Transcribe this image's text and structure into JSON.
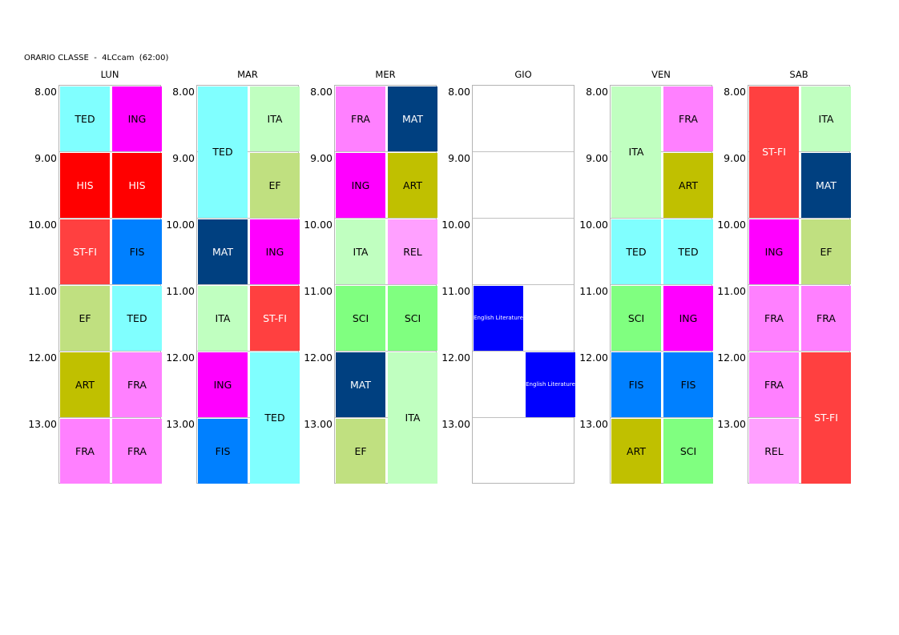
{
  "title": "ORARIO CLASSE  -  4LCcam  (62:00)",
  "times": [
    "8.00",
    "9.00",
    "10.00",
    "11.00",
    "12.00",
    "13.00"
  ],
  "colors": {
    "TED": "#80ffff",
    "ING": "#ff00ff",
    "HIS": "#ff0000",
    "ST-FI": "#ff4040",
    "FIS": "#0080ff",
    "EF": "#c0e080",
    "ART": "#c0c000",
    "FRA": "#ff80ff",
    "ITA": "#c0ffc0",
    "MAT": "#004080",
    "REL": "#ffa0ff",
    "SCI": "#80ff80",
    "English Literature": "#0000ff"
  },
  "text_colors": {
    "HIS": "#ffffff",
    "ST-FI": "#ffffff",
    "MAT": "#ffffff",
    "English Literature": "#ffffff"
  },
  "days": [
    {
      "name": "LUN",
      "lessons": [
        {
          "subject": "TED",
          "col": 0,
          "start": 0,
          "span": 1
        },
        {
          "subject": "ING",
          "col": 1,
          "start": 0,
          "span": 1
        },
        {
          "subject": "HIS",
          "col": 0,
          "start": 1,
          "span": 1
        },
        {
          "subject": "HIS",
          "col": 1,
          "start": 1,
          "span": 1
        },
        {
          "subject": "ST-FI",
          "col": 0,
          "start": 2,
          "span": 1
        },
        {
          "subject": "FIS",
          "col": 1,
          "start": 2,
          "span": 1
        },
        {
          "subject": "EF",
          "col": 0,
          "start": 3,
          "span": 1
        },
        {
          "subject": "TED",
          "col": 1,
          "start": 3,
          "span": 1
        },
        {
          "subject": "ART",
          "col": 0,
          "start": 4,
          "span": 1
        },
        {
          "subject": "FRA",
          "col": 1,
          "start": 4,
          "span": 1
        },
        {
          "subject": "FRA",
          "col": 0,
          "start": 5,
          "span": 1
        },
        {
          "subject": "FRA",
          "col": 1,
          "start": 5,
          "span": 1
        }
      ]
    },
    {
      "name": "MAR",
      "lessons": [
        {
          "subject": "TED",
          "col": 0,
          "start": 0,
          "span": 2
        },
        {
          "subject": "ITA",
          "col": 1,
          "start": 0,
          "span": 1
        },
        {
          "subject": "EF",
          "col": 1,
          "start": 1,
          "span": 1
        },
        {
          "subject": "MAT",
          "col": 0,
          "start": 2,
          "span": 1
        },
        {
          "subject": "ING",
          "col": 1,
          "start": 2,
          "span": 1
        },
        {
          "subject": "ITA",
          "col": 0,
          "start": 3,
          "span": 1
        },
        {
          "subject": "ST-FI",
          "col": 1,
          "start": 3,
          "span": 1
        },
        {
          "subject": "ING",
          "col": 0,
          "start": 4,
          "span": 1
        },
        {
          "subject": "TED",
          "col": 1,
          "start": 4,
          "span": 2
        },
        {
          "subject": "FIS",
          "col": 0,
          "start": 5,
          "span": 1
        }
      ]
    },
    {
      "name": "MER",
      "lessons": [
        {
          "subject": "FRA",
          "col": 0,
          "start": 0,
          "span": 1
        },
        {
          "subject": "MAT",
          "col": 1,
          "start": 0,
          "span": 1
        },
        {
          "subject": "ING",
          "col": 0,
          "start": 1,
          "span": 1
        },
        {
          "subject": "ART",
          "col": 1,
          "start": 1,
          "span": 1
        },
        {
          "subject": "ITA",
          "col": 0,
          "start": 2,
          "span": 1
        },
        {
          "subject": "REL",
          "col": 1,
          "start": 2,
          "span": 1
        },
        {
          "subject": "SCI",
          "col": 0,
          "start": 3,
          "span": 1
        },
        {
          "subject": "SCI",
          "col": 1,
          "start": 3,
          "span": 1
        },
        {
          "subject": "MAT",
          "col": 0,
          "start": 4,
          "span": 1
        },
        {
          "subject": "ITA",
          "col": 1,
          "start": 4,
          "span": 2
        },
        {
          "subject": "EF",
          "col": 0,
          "start": 5,
          "span": 1
        }
      ]
    },
    {
      "name": "GIO",
      "lessons": [
        {
          "subject": "English Literature",
          "col": 0,
          "start": 3,
          "span": 1,
          "small": true
        },
        {
          "subject": "English Literature",
          "col": 1,
          "start": 4,
          "span": 1,
          "small": true
        }
      ]
    },
    {
      "name": "VEN",
      "lessons": [
        {
          "subject": "ITA",
          "col": 0,
          "start": 0,
          "span": 2
        },
        {
          "subject": "FRA",
          "col": 1,
          "start": 0,
          "span": 1
        },
        {
          "subject": "ART",
          "col": 1,
          "start": 1,
          "span": 1
        },
        {
          "subject": "TED",
          "col": 0,
          "start": 2,
          "span": 1
        },
        {
          "subject": "TED",
          "col": 1,
          "start": 2,
          "span": 1
        },
        {
          "subject": "SCI",
          "col": 0,
          "start": 3,
          "span": 1
        },
        {
          "subject": "ING",
          "col": 1,
          "start": 3,
          "span": 1
        },
        {
          "subject": "FIS",
          "col": 0,
          "start": 4,
          "span": 1
        },
        {
          "subject": "FIS",
          "col": 1,
          "start": 4,
          "span": 1
        },
        {
          "subject": "ART",
          "col": 0,
          "start": 5,
          "span": 1
        },
        {
          "subject": "SCI",
          "col": 1,
          "start": 5,
          "span": 1
        }
      ]
    },
    {
      "name": "SAB",
      "lessons": [
        {
          "subject": "ST-FI",
          "col": 0,
          "start": 0,
          "span": 2
        },
        {
          "subject": "ITA",
          "col": 1,
          "start": 0,
          "span": 1
        },
        {
          "subject": "MAT",
          "col": 1,
          "start": 1,
          "span": 1
        },
        {
          "subject": "ING",
          "col": 0,
          "start": 2,
          "span": 1
        },
        {
          "subject": "EF",
          "col": 1,
          "start": 2,
          "span": 1
        },
        {
          "subject": "FRA",
          "col": 0,
          "start": 3,
          "span": 1
        },
        {
          "subject": "FRA",
          "col": 1,
          "start": 3,
          "span": 1
        },
        {
          "subject": "FRA",
          "col": 0,
          "start": 4,
          "span": 1
        },
        {
          "subject": "ST-FI",
          "col": 1,
          "start": 4,
          "span": 2
        },
        {
          "subject": "REL",
          "col": 0,
          "start": 5,
          "span": 1
        }
      ]
    }
  ]
}
